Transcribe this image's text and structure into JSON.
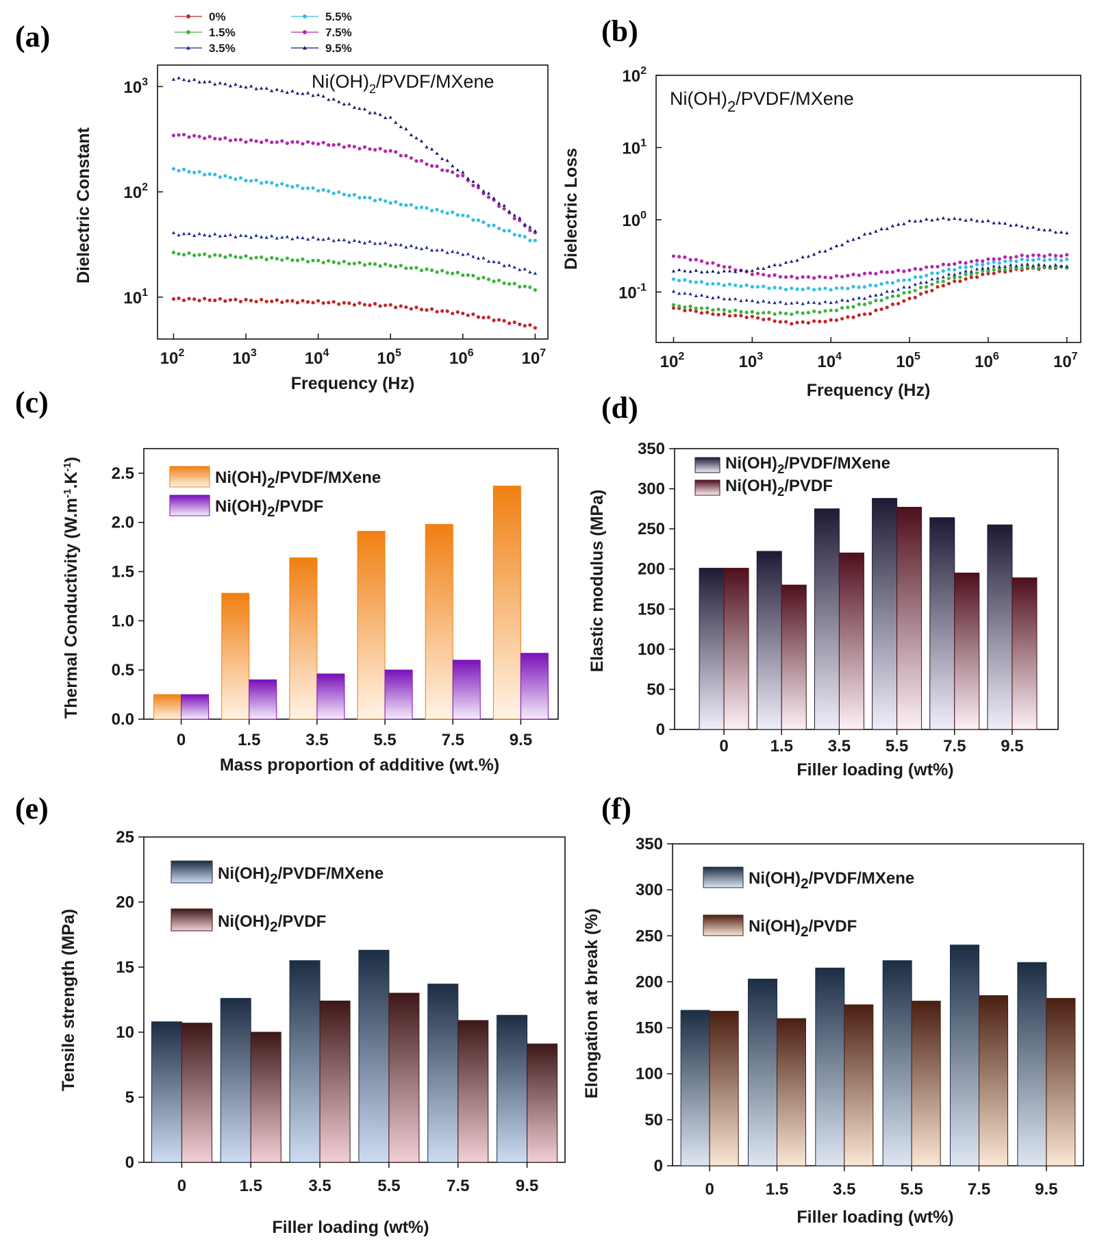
{
  "panels": {
    "a": "(a)",
    "b": "(b)",
    "c": "(c)",
    "d": "(d)",
    "e": "(e)",
    "f": "(f)"
  },
  "chart_data": [
    {
      "id": "a",
      "type": "line",
      "title_main": "Ni(OH)",
      "title_sub": "2",
      "title_rest": "/PVDF/MXene",
      "xlabel": "Frequency (Hz)",
      "ylabel": "Dielectric Constant",
      "xscale": "log",
      "yscale": "log",
      "xlim": [
        60,
        15000000
      ],
      "ylim": [
        4,
        1600
      ],
      "xticks": [
        {
          "e": "2",
          "v": 100
        },
        {
          "e": "3",
          "v": 1000
        },
        {
          "e": "4",
          "v": 10000
        },
        {
          "e": "5",
          "v": 100000
        },
        {
          "e": "6",
          "v": 1000000
        },
        {
          "e": "7",
          "v": 10000000
        }
      ],
      "yticks": [
        {
          "e": "1",
          "v": 10
        },
        {
          "e": "2",
          "v": 100
        },
        {
          "e": "3",
          "v": 1000
        }
      ],
      "legend_placement": "top, outside plot",
      "series": [
        {
          "name": "0%",
          "color": "#c0282a",
          "marker": "circle",
          "x": [
            100,
            1000,
            10000,
            100000,
            1000000,
            10000000
          ],
          "y": [
            9.6,
            9.3,
            9.0,
            8.3,
            7.0,
            5.2
          ]
        },
        {
          "name": "1.5%",
          "color": "#3cb33a",
          "marker": "circle",
          "x": [
            100,
            1000,
            10000,
            100000,
            1000000,
            10000000
          ],
          "y": [
            26,
            24,
            22,
            20,
            16.5,
            12
          ]
        },
        {
          "name": "3.5%",
          "color": "#1c2a8c",
          "marker": "triangle",
          "x": [
            100,
            1000,
            10000,
            100000,
            1000000,
            10000000
          ],
          "y": [
            40,
            38,
            36,
            32,
            26,
            17
          ]
        },
        {
          "name": "5.5%",
          "color": "#33bfe0",
          "marker": "circle",
          "x": [
            100,
            1000,
            10000,
            100000,
            1000000,
            10000000
          ],
          "y": [
            165,
            130,
            105,
            80,
            60,
            34
          ]
        },
        {
          "name": "7.5%",
          "color": "#b02aaa",
          "marker": "circle",
          "x": [
            100,
            1000,
            10000,
            100000,
            1000000,
            10000000
          ],
          "y": [
            350,
            305,
            290,
            245,
            140,
            40
          ]
        },
        {
          "name": "9.5%",
          "color": "#1a1a70",
          "marker": "triangle",
          "x": [
            100,
            1000,
            10000,
            100000,
            1000000,
            10000000
          ],
          "y": [
            1200,
            1000,
            830,
            500,
            150,
            42
          ]
        }
      ]
    },
    {
      "id": "b",
      "type": "line",
      "title_main": "Ni(OH)",
      "title_sub": "2",
      "title_rest": "/PVDF/MXene",
      "xlabel": "Frequency (Hz)",
      "ylabel": "Dielectric Loss",
      "xscale": "log",
      "yscale": "log",
      "xlim": [
        60,
        15000000
      ],
      "ylim": [
        0.02,
        100
      ],
      "xticks": [
        {
          "e": "2",
          "v": 100
        },
        {
          "e": "3",
          "v": 1000
        },
        {
          "e": "4",
          "v": 10000
        },
        {
          "e": "5",
          "v": 100000
        },
        {
          "e": "6",
          "v": 1000000
        },
        {
          "e": "7",
          "v": 10000000
        }
      ],
      "yticks": [
        {
          "e": "-1",
          "v": 0.1
        },
        {
          "e": "0",
          "v": 1
        },
        {
          "e": "1",
          "v": 10
        },
        {
          "e": "2",
          "v": 100
        }
      ],
      "series": [
        {
          "name": "0%",
          "color": "#c0282a",
          "marker": "circle",
          "x": [
            100,
            300,
            1000,
            3000,
            10000,
            30000,
            100000,
            300000,
            1000000,
            3000000,
            10000000
          ],
          "y": [
            0.06,
            0.05,
            0.045,
            0.037,
            0.04,
            0.05,
            0.08,
            0.13,
            0.18,
            0.21,
            0.22
          ]
        },
        {
          "name": "1.5%",
          "color": "#3cb33a",
          "marker": "circle",
          "x": [
            100,
            300,
            1000,
            3000,
            10000,
            30000,
            100000,
            300000,
            1000000,
            3000000,
            10000000
          ],
          "y": [
            0.065,
            0.058,
            0.052,
            0.05,
            0.055,
            0.07,
            0.1,
            0.15,
            0.2,
            0.22,
            0.22
          ]
        },
        {
          "name": "3.5%",
          "color": "#1c2a8c",
          "marker": "triangle",
          "x": [
            100,
            300,
            1000,
            3000,
            10000,
            30000,
            100000,
            300000,
            1000000,
            3000000,
            10000000
          ],
          "y": [
            0.1,
            0.085,
            0.075,
            0.07,
            0.072,
            0.085,
            0.12,
            0.17,
            0.22,
            0.24,
            0.23
          ]
        },
        {
          "name": "5.5%",
          "color": "#33bfe0",
          "marker": "circle",
          "x": [
            100,
            300,
            1000,
            3000,
            10000,
            30000,
            100000,
            300000,
            1000000,
            3000000,
            10000000
          ],
          "y": [
            0.15,
            0.13,
            0.12,
            0.11,
            0.11,
            0.12,
            0.15,
            0.2,
            0.25,
            0.28,
            0.28
          ]
        },
        {
          "name": "7.5%",
          "color": "#b02aaa",
          "marker": "circle",
          "x": [
            100,
            300,
            1000,
            3000,
            10000,
            30000,
            100000,
            300000,
            1000000,
            3000000,
            10000000
          ],
          "y": [
            0.32,
            0.25,
            0.18,
            0.16,
            0.16,
            0.18,
            0.2,
            0.24,
            0.28,
            0.32,
            0.32
          ]
        },
        {
          "name": "9.5%",
          "color": "#1a1a70",
          "marker": "triangle",
          "x": [
            100,
            300,
            1000,
            3000,
            10000,
            30000,
            100000,
            300000,
            1000000,
            3000000,
            10000000
          ],
          "y": [
            0.2,
            0.19,
            0.2,
            0.26,
            0.4,
            0.65,
            0.95,
            1.05,
            0.95,
            0.8,
            0.65
          ]
        }
      ]
    },
    {
      "id": "c",
      "type": "bar",
      "xlabel": "Mass proportion of additive (wt.%)",
      "ylabel_pre": "Thermal Conductivity (W.m",
      "ylabel_sup1": "-1",
      "ylabel_mid": ".K",
      "ylabel_sup2": "-1",
      "ylabel_post": ")",
      "categories": [
        "0",
        "1.5",
        "3.5",
        "5.5",
        "7.5",
        "9.5"
      ],
      "ylim": [
        0,
        2.75
      ],
      "yticks": [
        "0.0",
        "0.5",
        "1.0",
        "1.5",
        "2.0",
        "2.5"
      ],
      "legend_placement": "top-left",
      "series": [
        {
          "name_main": "Ni(OH)",
          "name_sub": "2",
          "name_rest": "/PVDF/MXene",
          "values": [
            0.25,
            1.28,
            1.64,
            1.91,
            1.98,
            2.37
          ],
          "top": "#f07f12",
          "bottom": "#fff3e6"
        },
        {
          "name_main": "Ni(OH)",
          "name_sub": "2",
          "name_rest": "/PVDF",
          "values": [
            0.25,
            0.4,
            0.46,
            0.5,
            0.6,
            0.67
          ],
          "top": "#7a10b8",
          "bottom": "#f5ecfb"
        }
      ]
    },
    {
      "id": "d",
      "type": "bar",
      "xlabel": "Filler loading (wt%)",
      "ylabel": "Elastic modulus (MPa)",
      "categories": [
        "0",
        "1.5",
        "3.5",
        "5.5",
        "7.5",
        "9.5"
      ],
      "ylim": [
        0,
        350
      ],
      "yticks": [
        "0",
        "50",
        "100",
        "150",
        "200",
        "250",
        "300",
        "350"
      ],
      "legend_placement": "top-left",
      "series": [
        {
          "name_main": "Ni(OH)",
          "name_sub": "2",
          "name_rest": "/PVDF/MXene",
          "values": [
            201,
            222,
            275,
            288,
            264,
            255
          ],
          "top": "#1e1a35",
          "bottom": "#f0eefa"
        },
        {
          "name_main": "Ni(OH)",
          "name_sub": "2",
          "name_rest": "/PVDF",
          "values": [
            201,
            180,
            220,
            277,
            195,
            189
          ],
          "top": "#4e0f1c",
          "bottom": "#fdf0f6"
        }
      ]
    },
    {
      "id": "e",
      "type": "bar",
      "xlabel": "Filler loading (wt%)",
      "ylabel": "Tensile strength (MPa)",
      "categories": [
        "0",
        "1.5",
        "3.5",
        "5.5",
        "7.5",
        "9.5"
      ],
      "ylim": [
        0,
        25
      ],
      "yticks": [
        "0",
        "5",
        "10",
        "15",
        "20",
        "25"
      ],
      "legend_placement": "top-left",
      "series": [
        {
          "name_main": "Ni(OH)",
          "name_sub": "2",
          "name_rest": "/PVDF/MXene",
          "values": [
            10.8,
            12.6,
            15.5,
            16.3,
            13.7,
            11.3
          ],
          "top": "#1c2d44",
          "bottom": "#cddcf2"
        },
        {
          "name_main": "Ni(OH)",
          "name_sub": "2",
          "name_rest": "/PVDF",
          "values": [
            10.7,
            10.0,
            12.4,
            13.0,
            10.9,
            9.1
          ],
          "top": "#3e1818",
          "bottom": "#f2cfd6"
        }
      ]
    },
    {
      "id": "f",
      "type": "bar",
      "xlabel": "Filler loading (wt%)",
      "ylabel": "Elongation at break (%)",
      "categories": [
        "0",
        "1.5",
        "3.5",
        "5.5",
        "7.5",
        "9.5"
      ],
      "ylim": [
        0,
        350
      ],
      "yticks": [
        "0",
        "50",
        "100",
        "150",
        "200",
        "250",
        "300",
        "350"
      ],
      "legend_placement": "top-left",
      "series": [
        {
          "name_main": "Ni(OH)",
          "name_sub": "2",
          "name_rest": "/PVDF/MXene",
          "values": [
            169,
            203,
            215,
            223,
            240,
            221
          ],
          "top": "#1c2d44",
          "bottom": "#dde6f3"
        },
        {
          "name_main": "Ni(OH)",
          "name_sub": "2",
          "name_rest": "/PVDF",
          "values": [
            168,
            160,
            175,
            179,
            185,
            182
          ],
          "top": "#4a1f12",
          "bottom": "#fbe6d4"
        }
      ]
    }
  ]
}
